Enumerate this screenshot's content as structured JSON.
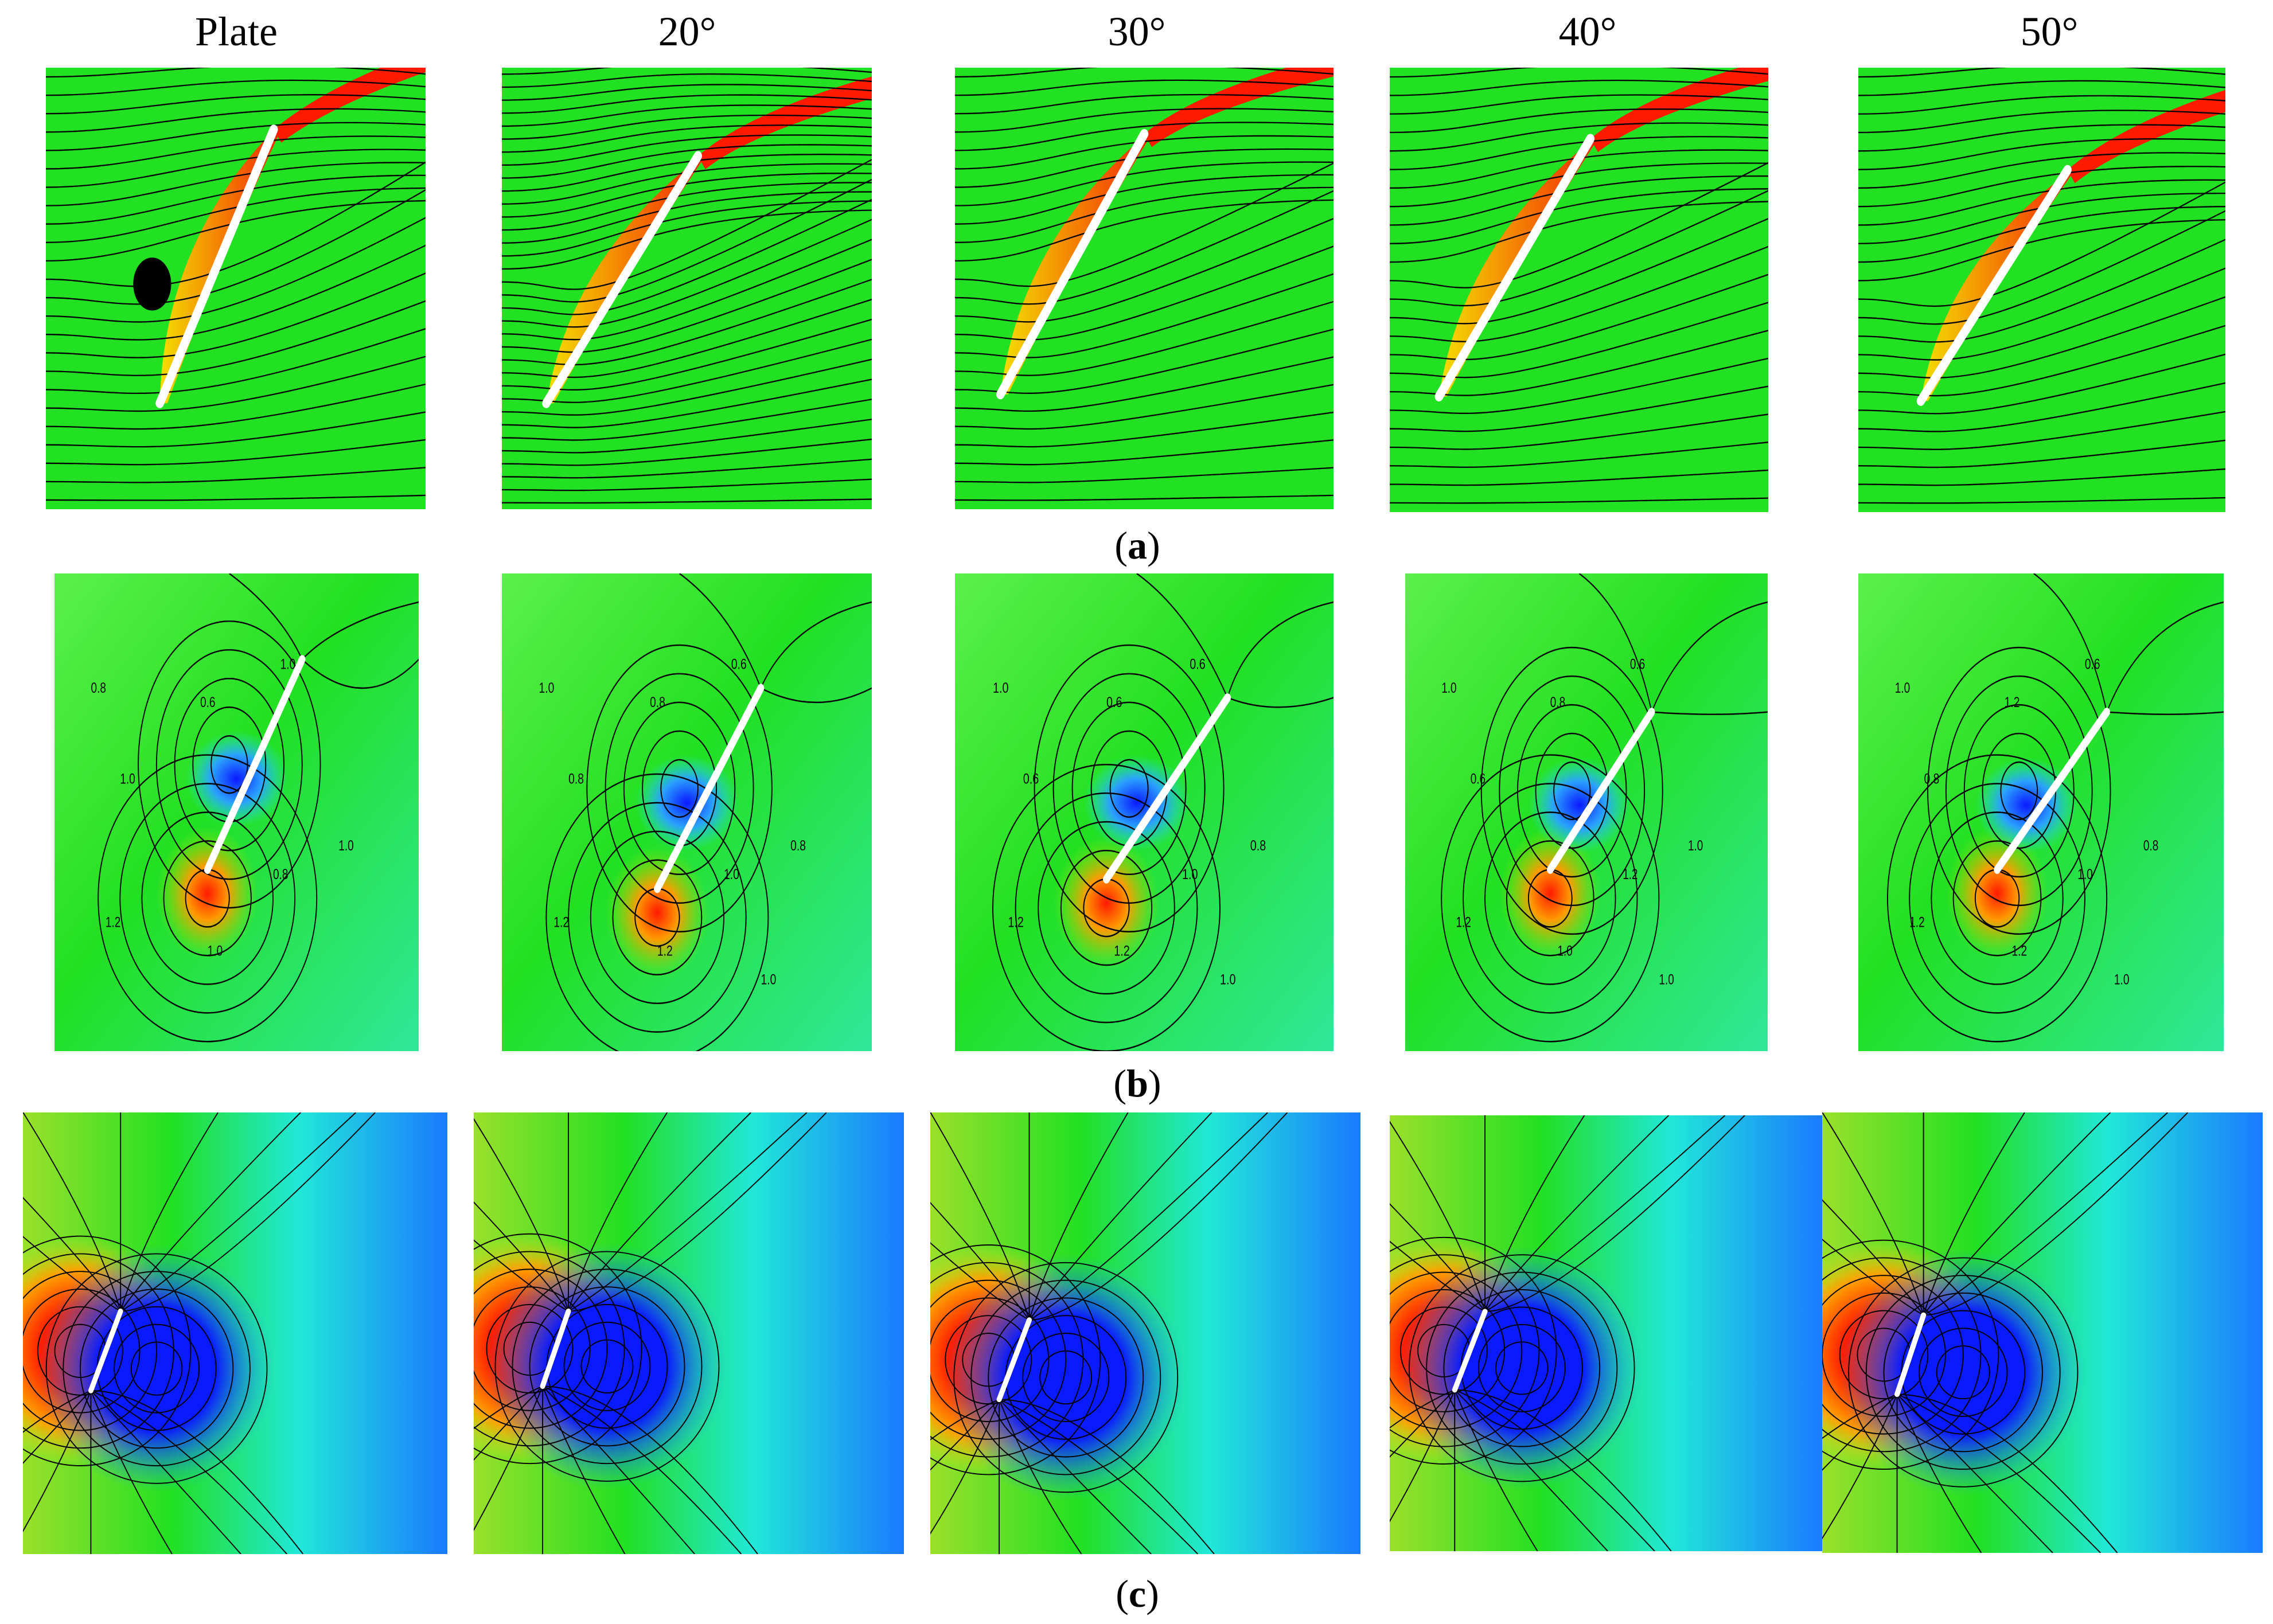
{
  "figure": {
    "columns": [
      "Plate",
      "20°",
      "30°",
      "40°",
      "50°"
    ],
    "rows": [
      {
        "id": "a",
        "caption_open": "(",
        "caption_letter": "a",
        "caption_close": ")"
      },
      {
        "id": "b",
        "caption_open": "(",
        "caption_letter": "b",
        "caption_close": ")"
      },
      {
        "id": "c",
        "caption_open": "(",
        "caption_letter": "c",
        "caption_close": ")"
      }
    ],
    "contour_labels": {
      "plate": [
        "0.8",
        "0.6",
        "1.0",
        "1.0",
        "1.0",
        "0.8",
        "1.2",
        "1.0"
      ],
      "deg20": [
        "1.0",
        "0.8",
        "0.8",
        "0.6",
        "0.8",
        "1.0",
        "1.2",
        "1.2",
        "1.0"
      ],
      "deg30": [
        "1.0",
        "0.6",
        "0.6",
        "0.6",
        "0.8",
        "1.0",
        "1.2",
        "1.2",
        "1.0"
      ],
      "deg40": [
        "1.0",
        "0.8",
        "0.6",
        "0.6",
        "1.0",
        "1.2",
        "1.2",
        "1.0",
        "1.0"
      ],
      "deg50": [
        "1.0",
        "1.2",
        "0.8",
        "0.6",
        "0.8",
        "1.0",
        "1.2",
        "1.2",
        "1.0"
      ]
    }
  },
  "colors": {
    "field_green": "#22e022",
    "high": "#ff1a00",
    "low": "#0a1aff",
    "mid_cyan": "#20e8d8",
    "plate": "#ffffff",
    "line": "#000000"
  }
}
